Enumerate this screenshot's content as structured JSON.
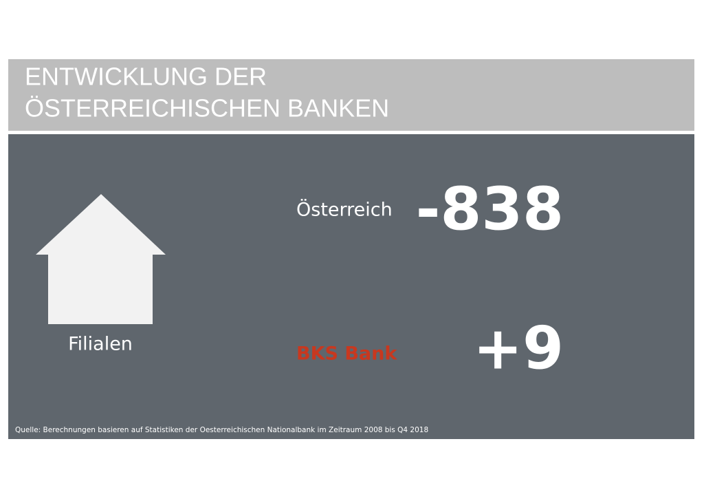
{
  "header": {
    "title_lines": [
      "ENTWICKLUNG DER",
      "ÖSTERREICHISCHEN BANKEN"
    ]
  },
  "icon": {
    "label": "Filialen"
  },
  "rows": [
    {
      "label": "Österreich",
      "value": "-838"
    },
    {
      "label": "BKS Bank",
      "value": "+9"
    }
  ],
  "source": "Quelle: Berechnungen basieren auf Statistiken der Oesterreichischen Nationalbank im Zeitraum 2008 bis Q4 2018"
}
